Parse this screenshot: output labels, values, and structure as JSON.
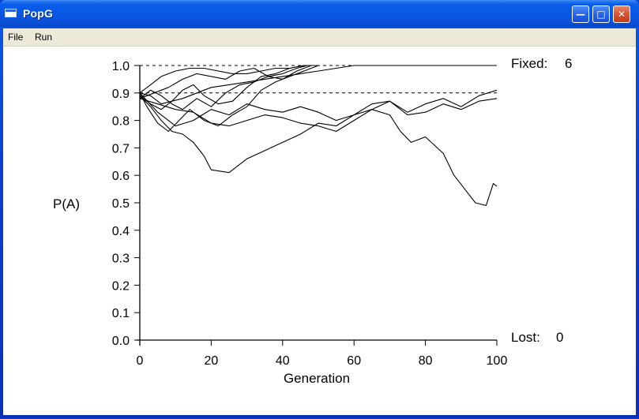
{
  "window": {
    "title": "PopG"
  },
  "menu": {
    "file": "File",
    "run": "Run"
  },
  "status": {
    "fixed_label": "Fixed:",
    "fixed_count": "6",
    "lost_label": "Lost:",
    "lost_count": "0"
  },
  "chart_data": {
    "type": "line",
    "xlabel": "Generation",
    "ylabel": "P(A)",
    "xlim": [
      0,
      100
    ],
    "ylim": [
      0.0,
      1.0
    ],
    "x_ticks": [
      "0",
      "20",
      "40",
      "60",
      "80",
      "100"
    ],
    "y_ticks": [
      "0.0",
      "0.1",
      "0.2",
      "0.3",
      "0.4",
      "0.5",
      "0.6",
      "0.7",
      "0.8",
      "0.9",
      "1.0"
    ],
    "reference_lines": [
      1.0,
      0.9,
      0.0
    ],
    "series": [
      {
        "x": [
          0,
          3,
          6,
          9,
          12,
          16,
          20,
          25,
          30,
          35,
          40,
          45,
          50,
          55,
          60,
          65,
          70,
          75,
          80,
          85,
          90,
          95,
          100
        ],
        "values": [
          0.9,
          0.89,
          0.86,
          0.87,
          0.88,
          0.9,
          0.92,
          0.93,
          0.94,
          0.95,
          0.96,
          0.97,
          0.98,
          0.99,
          1.0,
          1.0,
          1.0,
          1.0,
          1.0,
          1.0,
          1.0,
          1.0,
          1.0
        ]
      },
      {
        "x": [
          0,
          3,
          6,
          10,
          14,
          18,
          22,
          26,
          30,
          34,
          38,
          42,
          46,
          50
        ],
        "values": [
          0.9,
          0.93,
          0.96,
          0.98,
          0.99,
          0.99,
          0.98,
          0.97,
          0.97,
          0.98,
          0.99,
          0.99,
          1.0,
          1.0
        ]
      },
      {
        "x": [
          0,
          4,
          8,
          12,
          16,
          20,
          24,
          28,
          32,
          36,
          40,
          44,
          48
        ],
        "values": [
          0.88,
          0.9,
          0.92,
          0.95,
          0.97,
          0.96,
          0.95,
          0.98,
          0.99,
          0.96,
          0.95,
          0.98,
          1.0
        ]
      },
      {
        "x": [
          0,
          3,
          6,
          9,
          12,
          15,
          18,
          22,
          26,
          30,
          34,
          38,
          42,
          46
        ],
        "values": [
          0.89,
          0.86,
          0.84,
          0.87,
          0.91,
          0.93,
          0.89,
          0.86,
          0.87,
          0.92,
          0.96,
          0.97,
          0.99,
          1.0
        ]
      },
      {
        "x": [
          0,
          3,
          6,
          9,
          12,
          16,
          20,
          24,
          28,
          32,
          36,
          40,
          44,
          47
        ],
        "values": [
          0.88,
          0.91,
          0.89,
          0.86,
          0.84,
          0.88,
          0.85,
          0.9,
          0.93,
          0.94,
          0.96,
          0.97,
          0.99,
          1.0
        ]
      },
      {
        "x": [
          0,
          2,
          5,
          8,
          11,
          14,
          18,
          22,
          26,
          30,
          34,
          38,
          42,
          46,
          50
        ],
        "values": [
          0.9,
          0.85,
          0.79,
          0.76,
          0.8,
          0.84,
          0.8,
          0.78,
          0.82,
          0.85,
          0.91,
          0.94,
          0.96,
          0.98,
          1.0
        ]
      },
      {
        "x": [
          0,
          5,
          10,
          15,
          20,
          25,
          30,
          35,
          40,
          45,
          50,
          55,
          60,
          65,
          70,
          75,
          80,
          85,
          90,
          95,
          100
        ],
        "values": [
          0.9,
          0.83,
          0.78,
          0.8,
          0.84,
          0.82,
          0.86,
          0.84,
          0.83,
          0.85,
          0.83,
          0.8,
          0.82,
          0.86,
          0.87,
          0.82,
          0.83,
          0.86,
          0.84,
          0.87,
          0.88
        ]
      },
      {
        "x": [
          0,
          5,
          10,
          15,
          20,
          25,
          30,
          35,
          40,
          45,
          50,
          55,
          60,
          65,
          70,
          75,
          80,
          85,
          90,
          95,
          100
        ],
        "values": [
          0.88,
          0.86,
          0.84,
          0.83,
          0.79,
          0.78,
          0.8,
          0.82,
          0.81,
          0.79,
          0.78,
          0.76,
          0.8,
          0.84,
          0.87,
          0.83,
          0.86,
          0.88,
          0.85,
          0.89,
          0.91
        ]
      },
      {
        "x": [
          0,
          3,
          6,
          9,
          12,
          15,
          18,
          20,
          25,
          30,
          35,
          40,
          45,
          50,
          55,
          60,
          65,
          70,
          73,
          76,
          80,
          85,
          88,
          91,
          94,
          97,
          99,
          100
        ],
        "values": [
          0.89,
          0.85,
          0.8,
          0.76,
          0.75,
          0.72,
          0.67,
          0.62,
          0.61,
          0.66,
          0.69,
          0.72,
          0.75,
          0.79,
          0.78,
          0.82,
          0.84,
          0.82,
          0.76,
          0.72,
          0.74,
          0.68,
          0.6,
          0.55,
          0.5,
          0.49,
          0.57,
          0.56
        ]
      }
    ]
  }
}
